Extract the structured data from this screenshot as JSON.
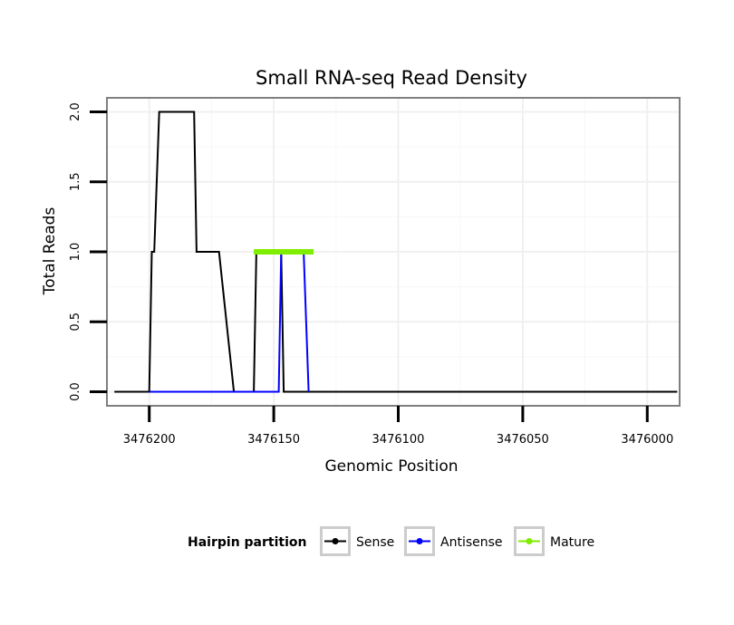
{
  "chart_data": {
    "type": "line",
    "title": "Small RNA-seq Read Density",
    "xlabel": "Genomic Position",
    "ylabel": "Total Reads",
    "x_reversed": true,
    "xlim": [
      3476217,
      3475987
    ],
    "ylim": [
      -0.1,
      2.1
    ],
    "x_ticks": [
      3476200,
      3476150,
      3476100,
      3476050,
      3476000
    ],
    "x_tick_labels": [
      "3476200",
      "3476150",
      "3476100",
      "3476050",
      "3476000"
    ],
    "y_ticks": [
      0.0,
      0.5,
      1.0,
      1.5,
      2.0
    ],
    "y_tick_labels": [
      "0.0",
      "0.5",
      "1.0",
      "1.5",
      "2.0"
    ],
    "grid": true,
    "legend": {
      "title": "Hairpin partition",
      "position": "bottom"
    },
    "series": [
      {
        "name": "Sense",
        "color": "#000000",
        "line_width": 2,
        "x": [
          3476214,
          3476200,
          3476199,
          3476198,
          3476196,
          3476182,
          3476181,
          3476172,
          3476166,
          3476165,
          3476158,
          3476157,
          3476147,
          3476146,
          3476136,
          3476135,
          3475988
        ],
        "y": [
          0,
          0,
          1,
          1,
          2,
          2,
          1,
          1,
          0,
          0,
          0,
          1,
          1,
          0,
          0,
          0,
          0
        ]
      },
      {
        "name": "Antisense",
        "color": "#0000ff",
        "line_width": 2,
        "x": [
          3476200,
          3476148,
          3476147,
          3476138,
          3476136
        ],
        "y": [
          0,
          0,
          1,
          1,
          0
        ]
      },
      {
        "name": "Mature",
        "color": "#80ee00",
        "line_width": 6,
        "x": [
          3476158,
          3476134
        ],
        "y": [
          1,
          1
        ]
      }
    ]
  }
}
